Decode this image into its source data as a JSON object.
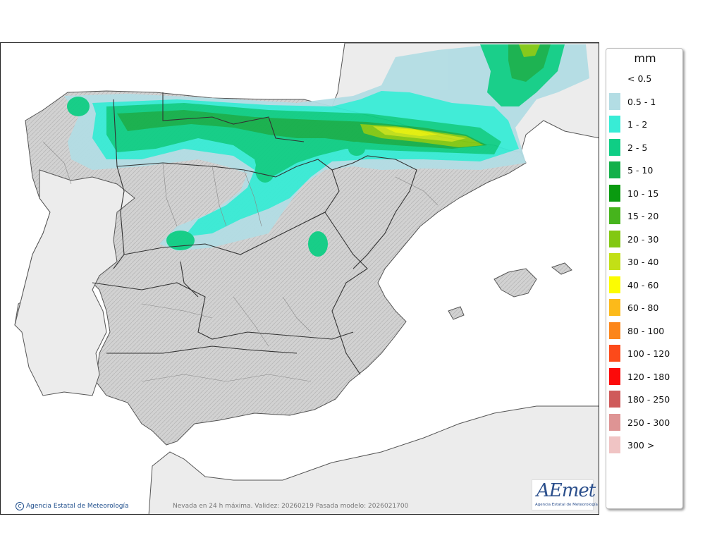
{
  "legend": {
    "unit": "mm",
    "items": [
      {
        "label": "< 0.5",
        "color": null
      },
      {
        "label": "0.5 - 1",
        "color": "#b3dde4"
      },
      {
        "label": "1 - 2",
        "color": "#38ecd6"
      },
      {
        "label": "2 - 5",
        "color": "#0fce85"
      },
      {
        "label": "5 - 10",
        "color": "#14b04a"
      },
      {
        "label": "10 - 15",
        "color": "#0a9a10"
      },
      {
        "label": "15 - 20",
        "color": "#46b41c"
      },
      {
        "label": "20 - 30",
        "color": "#82c812"
      },
      {
        "label": "30 - 40",
        "color": "#c2e016"
      },
      {
        "label": "40 - 60",
        "color": "#fcfc02"
      },
      {
        "label": "60 - 80",
        "color": "#fcba1a"
      },
      {
        "label": "80 - 100",
        "color": "#fc861a"
      },
      {
        "label": "100 - 120",
        "color": "#fc4a1a"
      },
      {
        "label": "120 - 180",
        "color": "#fc0a0a"
      },
      {
        "label": "180 - 250",
        "color": "#cf5a5a"
      },
      {
        "label": "250 - 300",
        "color": "#de9494"
      },
      {
        "label": "300 >",
        "color": "#f0c4c4"
      }
    ]
  },
  "footer": {
    "credit": "Agencia Estatal de Meteorología",
    "caption": "Nevada en 24 h máxima. Validez: 20260219 Pasada modelo: 2026021700"
  },
  "logo": {
    "text": "AEmet",
    "subtitle": "Agencia Estatal de Meteorología"
  }
}
